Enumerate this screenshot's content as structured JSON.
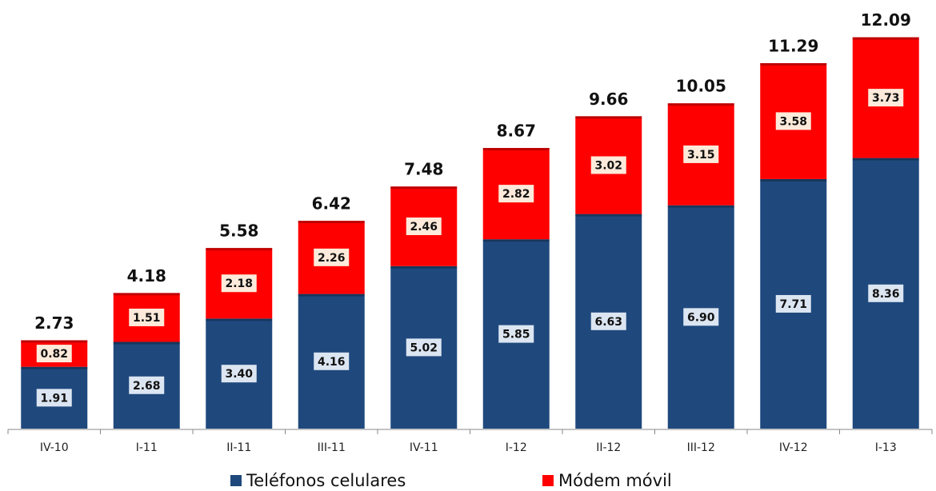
{
  "chart_data": {
    "type": "stacked_bar",
    "categories": [
      "IV-10",
      "I-11",
      "II-11",
      "III-11",
      "IV-11",
      "I-12",
      "II-12",
      "III-12",
      "IV-12",
      "I-13"
    ],
    "series": [
      {
        "name": "Teléfonos celulares",
        "color": "#1f497d",
        "values": [
          1.91,
          2.68,
          3.4,
          4.16,
          5.02,
          5.85,
          6.63,
          6.9,
          7.71,
          8.36
        ],
        "value_labels": [
          "1.91",
          "2.68",
          "3.40",
          "4.16",
          "5.02",
          "5.85",
          "6.63",
          "6.90",
          "7.71",
          "8.36"
        ]
      },
      {
        "name": "Módem móvil",
        "color": "#ff0000",
        "values": [
          0.82,
          1.51,
          2.18,
          2.26,
          2.46,
          2.82,
          3.02,
          3.15,
          3.58,
          3.73
        ],
        "value_labels": [
          "0.82",
          "1.51",
          "2.18",
          "2.26",
          "2.46",
          "2.82",
          "3.02",
          "3.15",
          "3.58",
          "3.73"
        ]
      }
    ],
    "totals": [
      2.73,
      4.18,
      5.58,
      6.42,
      7.48,
      8.67,
      9.66,
      10.05,
      11.29,
      12.09
    ],
    "ylim": [
      0,
      12.5
    ],
    "legend": "bottom"
  }
}
